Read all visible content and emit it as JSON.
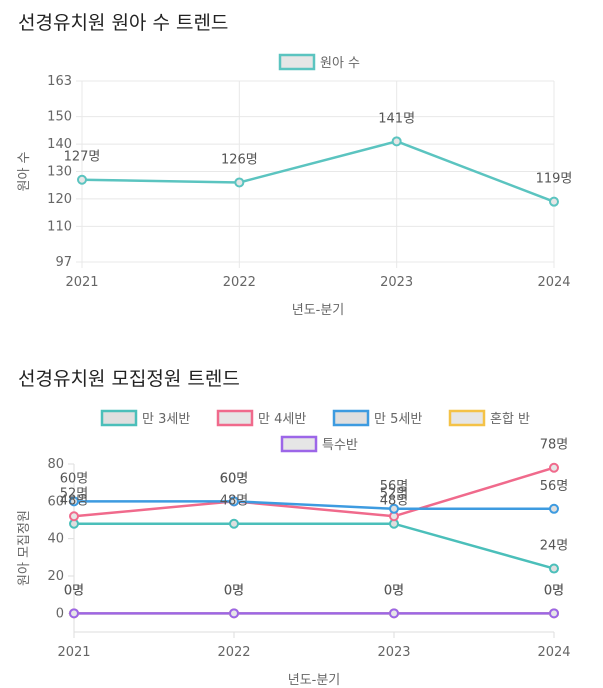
{
  "chart_data": [
    {
      "type": "line",
      "title": "선경유치원 원아 수 트렌드",
      "x": [
        "2021",
        "2022",
        "2023",
        "2024"
      ],
      "xlabel": "년도-분기",
      "ylabel": "원아 수",
      "yticks": [
        97,
        110,
        120,
        130,
        140,
        150,
        163
      ],
      "ylim": [
        97,
        163
      ],
      "legend": "top",
      "grid": true,
      "unit": "명",
      "series": [
        {
          "name": "원아 수",
          "color": "#5bc4c0",
          "fill": "#e6e6e6",
          "values": [
            127,
            126,
            141,
            119
          ],
          "labels": [
            "127명",
            "126명",
            "141명",
            "119명"
          ]
        }
      ]
    },
    {
      "type": "line",
      "title": "선경유치원 모집정원 트렌드",
      "x": [
        "2021",
        "2022",
        "2023",
        "2024"
      ],
      "xlabel": "년도-분기",
      "ylabel": "원아 모집정원",
      "yticks": [
        0,
        20,
        40,
        60,
        80
      ],
      "ylim": [
        -10,
        80
      ],
      "legend": "top",
      "grid": false,
      "unit": "명",
      "series": [
        {
          "name": "만 3세반",
          "color": "#4bbfba",
          "fill": "#dfdfdf",
          "values": [
            48,
            48,
            48,
            24
          ],
          "labels": [
            "48명",
            "48명",
            "48명",
            "24명"
          ]
        },
        {
          "name": "만 4세반",
          "color": "#f06a8c",
          "fill": "#e6e6e6",
          "values": [
            52,
            60,
            52,
            78
          ],
          "labels": [
            "52명",
            "60명",
            "52명",
            "78명"
          ]
        },
        {
          "name": "만 5세반",
          "color": "#3d9be0",
          "fill": "#dfdfdf",
          "values": [
            60,
            60,
            56,
            56
          ],
          "labels": [
            "60명",
            "60명",
            "56명",
            "56명"
          ]
        },
        {
          "name": "혼합 반",
          "color": "#f4c247",
          "fill": "#e6e6e6",
          "values": [
            0,
            0,
            0,
            0
          ],
          "labels": [
            "0명",
            "0명",
            "0명",
            "0명"
          ]
        },
        {
          "name": "특수반",
          "color": "#9c66e8",
          "fill": "#e6e6e6",
          "values": [
            0,
            0,
            0,
            0
          ],
          "labels": [
            "0명",
            "0명",
            "0명",
            "0명"
          ]
        }
      ]
    }
  ]
}
